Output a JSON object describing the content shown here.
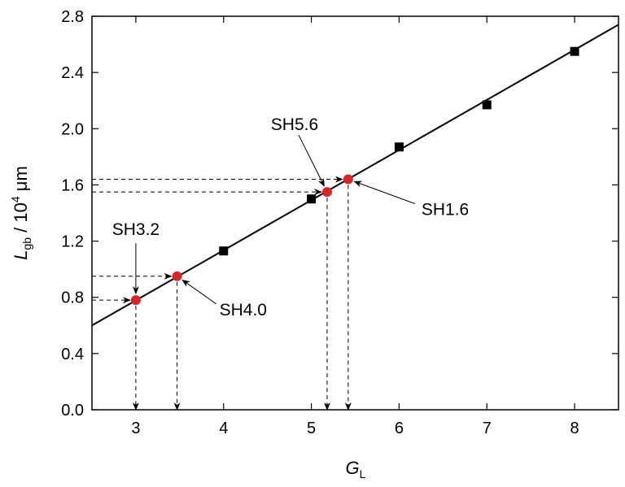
{
  "chart_data": {
    "type": "scatter",
    "xlabel": {
      "main": "G",
      "sub": "L"
    },
    "ylabel": {
      "main": "L",
      "sub": "gb",
      "mid": " / 10",
      "sup": "4",
      "unit": " μm"
    },
    "xlim": [
      2.5,
      8.5
    ],
    "ylim": [
      0.0,
      2.8
    ],
    "xticks": [
      3,
      4,
      5,
      6,
      7,
      8
    ],
    "xtick_labels": [
      "3",
      "4",
      "5",
      "6",
      "7",
      "8"
    ],
    "yticks": [
      0.0,
      0.4,
      0.8,
      1.2,
      1.6,
      2.0,
      2.4,
      2.8
    ],
    "ytick_labels": [
      "0.0",
      "0.4",
      "0.8",
      "1.2",
      "1.6",
      "2.0",
      "2.4",
      "2.8"
    ],
    "grid": false,
    "legend": "none",
    "series": [
      {
        "marker": "square",
        "color": "#000000",
        "x": [
          4,
          5,
          6,
          7,
          8
        ],
        "y": [
          1.13,
          1.5,
          1.87,
          2.17,
          2.55
        ]
      },
      {
        "marker": "circle",
        "color": "#d62728",
        "x": [
          3.0,
          3.47,
          5.18,
          5.42
        ],
        "y": [
          0.78,
          0.95,
          1.55,
          1.64
        ]
      }
    ],
    "fit_line": {
      "x": [
        2.5,
        8.5
      ],
      "y": [
        0.6,
        2.74
      ]
    },
    "annotations": [
      {
        "text": "SH3.2",
        "x": 3.0,
        "y": 0.78
      },
      {
        "text": "SH4.0",
        "x": 3.47,
        "y": 0.95
      },
      {
        "text": "SH5.6",
        "x": 5.18,
        "y": 1.55
      },
      {
        "text": "SH1.6",
        "x": 5.42,
        "y": 1.64
      }
    ]
  }
}
